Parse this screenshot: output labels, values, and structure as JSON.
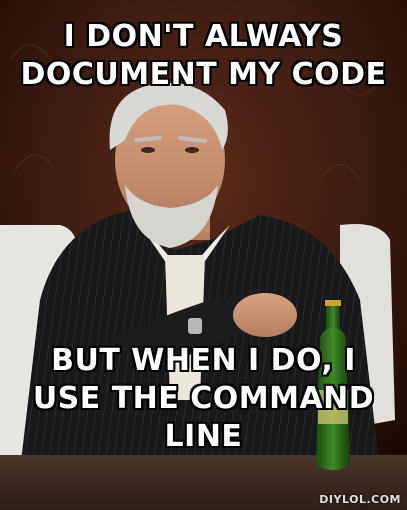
{
  "meme": {
    "top_lines": [
      "I DON'T ALWAYS",
      "DOCUMENT MY CODE"
    ],
    "bottom_lines": [
      "BUT WHEN I DO, I",
      "USE THE COMMAND",
      "LINE"
    ],
    "watermark": "DIYLOL.COM"
  },
  "colors": {
    "caption_text": "#ffffff",
    "caption_outline": "#000000",
    "background_wall": "#3a1a10",
    "jacket": "#1a1a1c",
    "bottle": "#2f6b1e",
    "table": "#3b2a22"
  }
}
